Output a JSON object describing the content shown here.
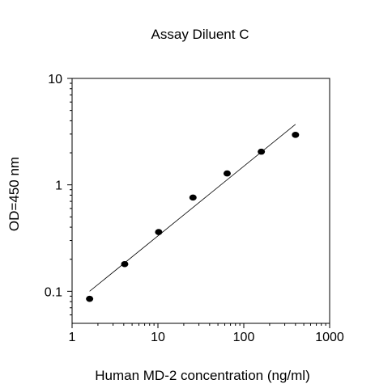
{
  "chart_data": {
    "type": "scatter",
    "title": "Assay Diluent C",
    "xlabel": "Human MD-2 concentration (ng/ml)",
    "ylabel": "OD=450 nm",
    "x_scale": "log",
    "y_scale": "log",
    "xlim": [
      1,
      1000
    ],
    "ylim": [
      0.05,
      10
    ],
    "x_ticks": [
      1,
      10,
      100,
      1000
    ],
    "x_tick_labels": [
      "1",
      "10",
      "100",
      "1000"
    ],
    "y_ticks": [
      0.1,
      1,
      10
    ],
    "y_tick_labels": [
      "0.1",
      "1",
      "10"
    ],
    "grid": false,
    "legend": "none",
    "series": [
      {
        "x": [
          1.6,
          4.1,
          10.2,
          25.6,
          64,
          160,
          400
        ],
        "y": [
          0.085,
          0.18,
          0.36,
          0.76,
          1.28,
          2.05,
          2.95
        ]
      }
    ],
    "fit_line": {
      "x": [
        1.6,
        400
      ],
      "y": [
        0.1,
        3.7
      ]
    },
    "colors": {
      "marker": "#000000",
      "line": "#000000",
      "background": "#ffffff"
    }
  }
}
